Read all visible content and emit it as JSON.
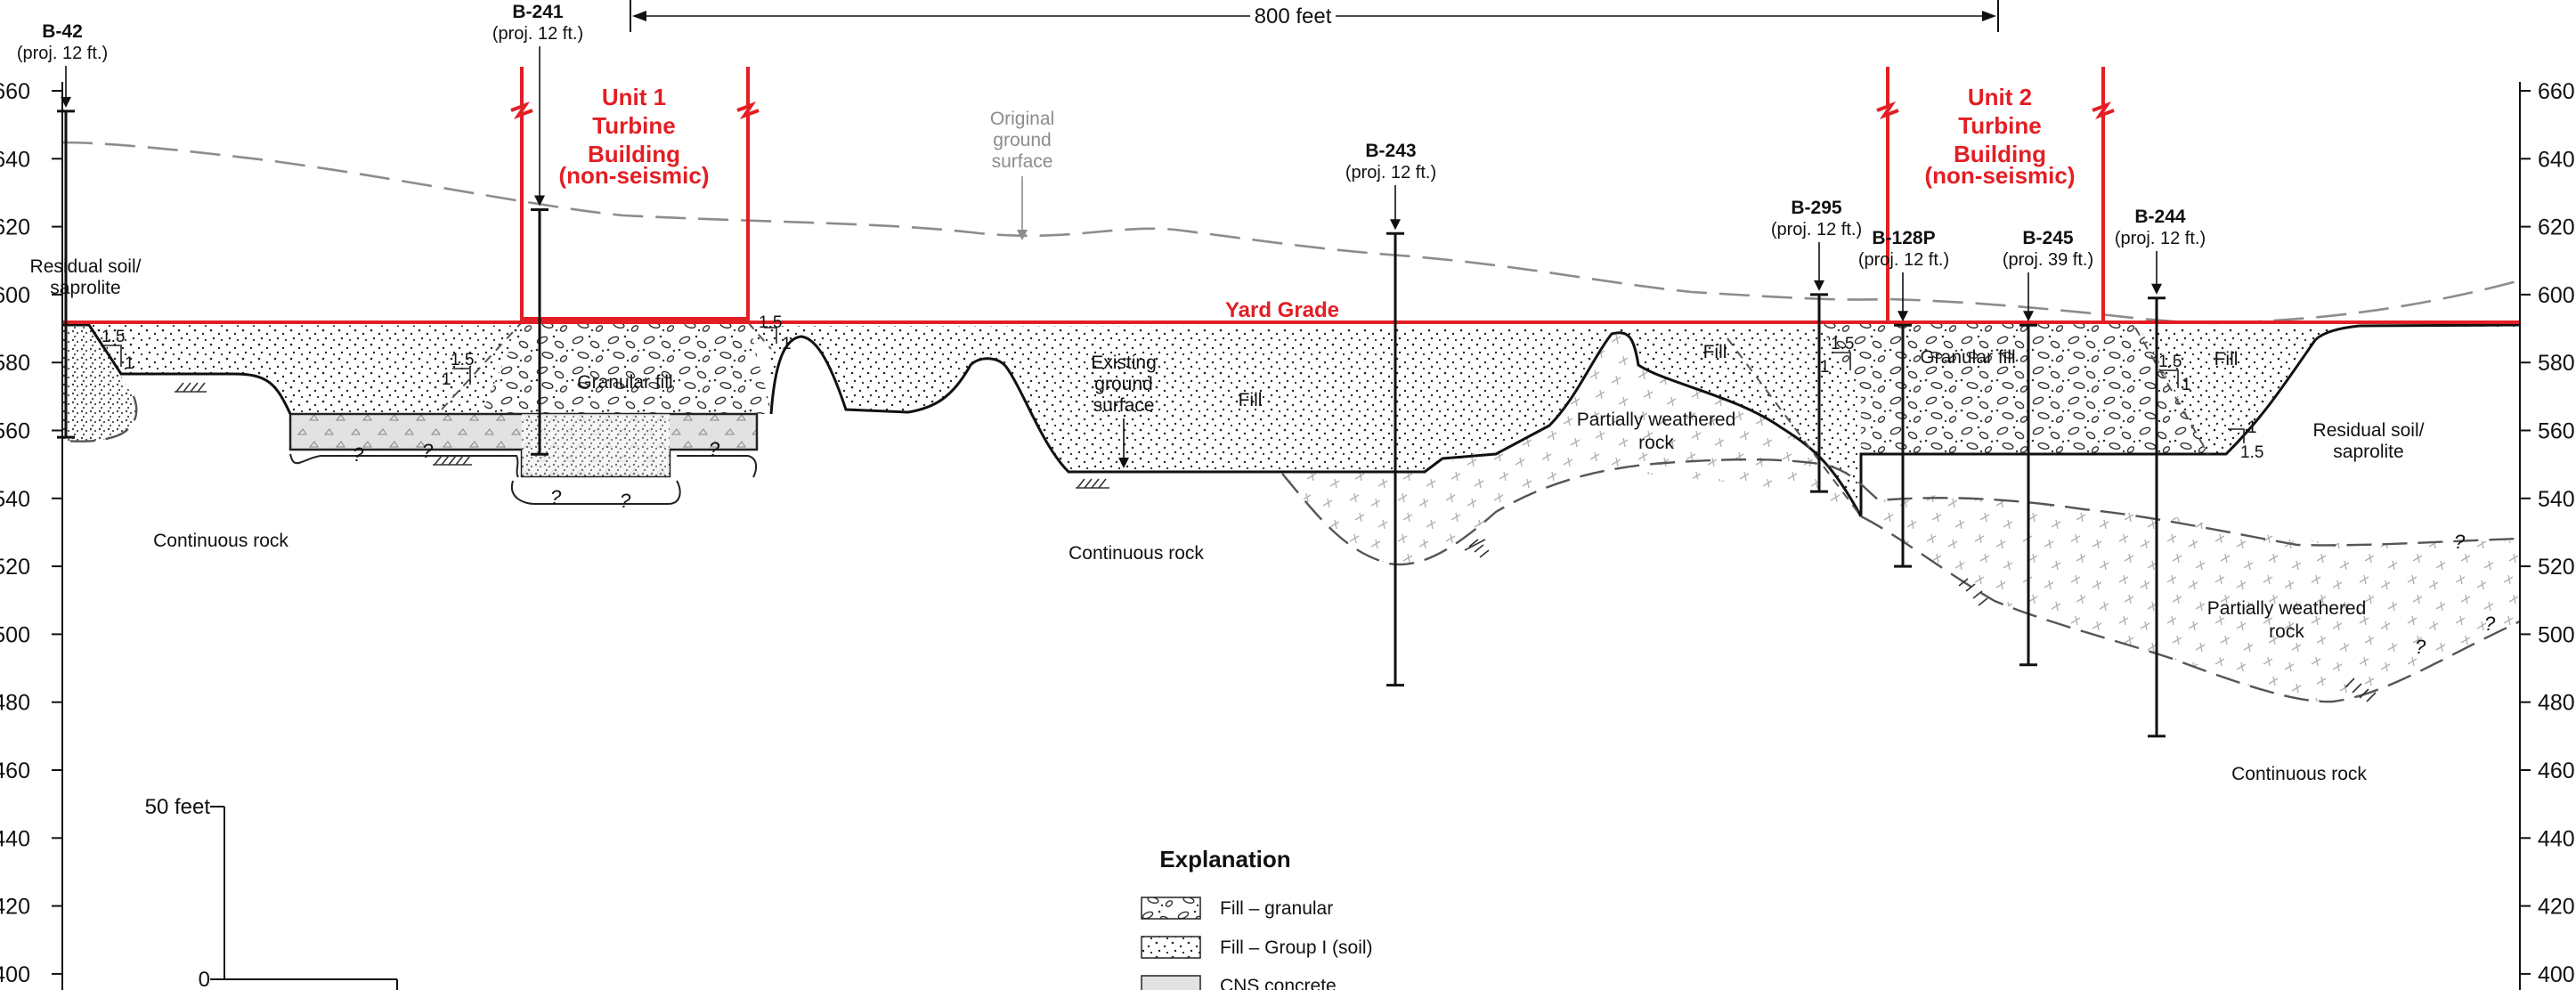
{
  "colors": {
    "structure_red": "#e31e24",
    "line_black": "#111111",
    "original_ground_gray": "#8c8c8c",
    "concrete_gray": "#e2e2e2",
    "rock_hatch_gray": "#bdbdbd"
  },
  "elevation_axis": {
    "ticks": [
      "660",
      "640",
      "620",
      "600",
      "580",
      "560",
      "540",
      "520",
      "500",
      "480",
      "460",
      "440",
      "420",
      "400"
    ],
    "min": 400,
    "max": 660,
    "step": 20
  },
  "dimension": {
    "label": "800 feet"
  },
  "scale_bar": {
    "top_label": "50 feet",
    "bottom_label": "0"
  },
  "structures": {
    "unit1": {
      "lines": [
        "Unit 1",
        "Turbine",
        "Building",
        "(non-seismic)"
      ]
    },
    "unit2": {
      "lines": [
        "Unit 2",
        "Turbine",
        "Building",
        "(non-seismic)"
      ]
    },
    "yard_grade": "Yard Grade"
  },
  "borings": [
    {
      "id": "B-42",
      "proj": "(proj. 12 ft.)",
      "top_elev": 654,
      "bottom_elev": 558
    },
    {
      "id": "B-241",
      "proj": "(proj. 12 ft.)",
      "top_elev": 625,
      "bottom_elev": 553
    },
    {
      "id": "B-243",
      "proj": "(proj. 12 ft.)",
      "top_elev": 618,
      "bottom_elev": 485
    },
    {
      "id": "B-295",
      "proj": "(proj. 12 ft.)",
      "top_elev": 600,
      "bottom_elev": 542
    },
    {
      "id": "B-128P",
      "proj": "(proj. 12 ft.)",
      "top_elev": 591,
      "bottom_elev": 520
    },
    {
      "id": "B-245",
      "proj": "(proj. 39 ft.)",
      "top_elev": 591,
      "bottom_elev": 491
    },
    {
      "id": "B-244",
      "proj": "(proj. 12 ft.)",
      "top_elev": 599,
      "bottom_elev": 470
    }
  ],
  "labels": {
    "residual_left": [
      "Residual soil/",
      "saprolite"
    ],
    "residual_right": [
      "Residual soil/",
      "saprolite"
    ],
    "original_ground": [
      "Original",
      "ground",
      "surface"
    ],
    "existing_ground": [
      "Existing",
      "ground",
      "surface"
    ],
    "granular_fill_1": "Granular fill",
    "granular_fill_2": "Granular fill",
    "fill_center": "Fill",
    "fill_b295": "Fill",
    "fill_right": "Fill",
    "pwr_center": [
      "Partially weathered",
      "rock"
    ],
    "pwr_right": [
      "Partially weathered",
      "rock"
    ],
    "continuous_rock_left": "Continuous rock",
    "continuous_rock_center": "Continuous rock",
    "continuous_rock_right": "Continuous rock",
    "slope_h": "1.5",
    "slope_v": "1",
    "unknown": "?"
  },
  "legend": {
    "title": "Explanation",
    "items": [
      {
        "label": "Fill – granular",
        "pattern": "granular"
      },
      {
        "label": "Fill – Group I (soil)",
        "pattern": "dots"
      },
      {
        "label": "CNS concrete",
        "pattern": "concrete"
      }
    ]
  }
}
